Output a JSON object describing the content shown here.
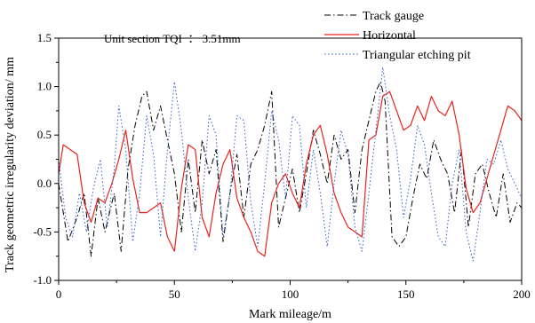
{
  "chart_data": {
    "type": "line",
    "xlabel": "Mark mileage/m",
    "ylabel": "Track geometric irregularity deviation/ mm",
    "xlim": [
      0,
      200
    ],
    "ylim": [
      -1.0,
      1.5
    ],
    "xticks": [
      "0",
      "50",
      "100",
      "150",
      "200"
    ],
    "yticks": [
      "-1.0",
      "-0.5",
      "0.0",
      "0.5",
      "1.0",
      "1.5"
    ],
    "xticks_values": [
      0,
      50,
      100,
      150,
      200
    ],
    "yticks_values": [
      -1.0,
      -0.5,
      0.0,
      0.5,
      1.0,
      1.5
    ],
    "grid": false,
    "legend_position": "top-right",
    "annotation": "Unit section TQI  ： 3.51mm",
    "series": [
      {
        "name": "Track gauge",
        "color": "#000000",
        "style": "dash-dot",
        "x": [
          0,
          4,
          8,
          11,
          14,
          17,
          20,
          24,
          27,
          30,
          33,
          36,
          38,
          41,
          44,
          47,
          50,
          53,
          56,
          59,
          62,
          65,
          68,
          71,
          74,
          77,
          80,
          83,
          86,
          89,
          92,
          95,
          98,
          101,
          104,
          107,
          110,
          113,
          116,
          119,
          122,
          125,
          128,
          131,
          134,
          137,
          139,
          141,
          144,
          147,
          150,
          153,
          156,
          159,
          162,
          165,
          168,
          171,
          174,
          177,
          180,
          183,
          186,
          189,
          192,
          195,
          198,
          200
        ],
        "y": [
          0.0,
          -0.6,
          -0.35,
          -0.1,
          -0.75,
          -0.15,
          -0.5,
          -0.1,
          -0.7,
          0.15,
          0.6,
          0.9,
          0.95,
          0.55,
          0.8,
          0.45,
          0.1,
          -0.5,
          0.25,
          -0.3,
          0.45,
          0.1,
          0.35,
          -0.6,
          -0.1,
          0.3,
          -0.35,
          0.2,
          0.35,
          0.6,
          0.95,
          -0.45,
          -0.15,
          0.15,
          -0.3,
          0.1,
          0.55,
          0.3,
          0.0,
          0.5,
          0.25,
          0.35,
          -0.3,
          0.35,
          0.65,
          0.95,
          1.05,
          0.85,
          -0.55,
          -0.65,
          -0.55,
          -0.15,
          0.2,
          0.05,
          0.45,
          0.25,
          0.1,
          -0.3,
          0.35,
          -0.45,
          0.1,
          0.2,
          -0.1,
          -0.35,
          0.1,
          -0.4,
          -0.2,
          -0.25
        ]
      },
      {
        "name": "Horizontal",
        "color": "#e8231c",
        "style": "solid",
        "x": [
          0,
          2,
          5,
          8,
          11,
          14,
          17,
          20,
          23,
          26,
          29,
          32,
          35,
          38,
          41,
          44,
          47,
          50,
          53,
          56,
          59,
          62,
          65,
          68,
          71,
          74,
          77,
          80,
          83,
          86,
          89,
          92,
          95,
          98,
          101,
          104,
          107,
          110,
          113,
          116,
          119,
          122,
          125,
          128,
          131,
          134,
          137,
          140,
          143,
          146,
          149,
          152,
          155,
          158,
          161,
          164,
          167,
          170,
          173,
          176,
          179,
          182,
          185,
          188,
          191,
          194,
          197,
          200
        ],
        "y": [
          0.1,
          0.4,
          0.35,
          0.3,
          -0.2,
          -0.4,
          -0.15,
          -0.2,
          0.0,
          0.25,
          0.55,
          0.05,
          -0.3,
          -0.3,
          -0.25,
          -0.2,
          -0.55,
          -0.7,
          -0.05,
          0.4,
          0.35,
          -0.35,
          -0.55,
          -0.1,
          0.2,
          0.35,
          -0.15,
          -0.35,
          -0.5,
          -0.7,
          -0.75,
          -0.2,
          0.0,
          0.1,
          -0.1,
          -0.25,
          0.2,
          0.5,
          0.6,
          0.3,
          -0.1,
          -0.3,
          -0.45,
          -0.5,
          -0.55,
          0.45,
          0.5,
          0.9,
          0.95,
          0.75,
          0.55,
          0.6,
          0.8,
          0.65,
          0.9,
          0.75,
          0.7,
          0.85,
          0.5,
          -0.05,
          -0.3,
          -0.2,
          0.05,
          0.3,
          0.55,
          0.8,
          0.75,
          0.65
        ]
      },
      {
        "name": "Triangular etching pit",
        "color": "#2f5fcf",
        "style": "dotted",
        "x": [
          0,
          3,
          6,
          9,
          12,
          15,
          18,
          21,
          24,
          26,
          29,
          32,
          35,
          38,
          41,
          44,
          47,
          50,
          53,
          56,
          59,
          62,
          65,
          68,
          71,
          74,
          77,
          80,
          83,
          86,
          89,
          92,
          95,
          98,
          101,
          104,
          107,
          110,
          113,
          116,
          119,
          122,
          125,
          128,
          131,
          134,
          137,
          140,
          143,
          146,
          149,
          152,
          155,
          158,
          161,
          164,
          167,
          170,
          173,
          176,
          179,
          182,
          185,
          188,
          191,
          194,
          197,
          200
        ],
        "y": [
          0.25,
          -0.35,
          -0.55,
          -0.1,
          -0.5,
          -0.05,
          0.25,
          -0.45,
          0.15,
          0.8,
          0.35,
          -0.6,
          -0.1,
          0.7,
          0.3,
          -0.55,
          0.35,
          1.05,
          0.55,
          -0.15,
          -0.7,
          -0.2,
          0.7,
          0.5,
          -0.55,
          -0.1,
          0.7,
          0.65,
          -0.2,
          -0.65,
          0.0,
          0.75,
          0.45,
          -0.15,
          0.7,
          0.6,
          -0.25,
          0.35,
          -0.1,
          -0.65,
          0.0,
          0.55,
          0.3,
          -0.45,
          -0.7,
          -0.1,
          0.55,
          1.2,
          0.7,
          0.35,
          -0.35,
          0.05,
          0.6,
          0.4,
          -0.1,
          -0.55,
          -0.65,
          0.0,
          0.35,
          -0.5,
          -0.8,
          -0.3,
          0.25,
          0.2,
          0.45,
          0.15,
          0.0,
          -0.15
        ]
      }
    ]
  }
}
